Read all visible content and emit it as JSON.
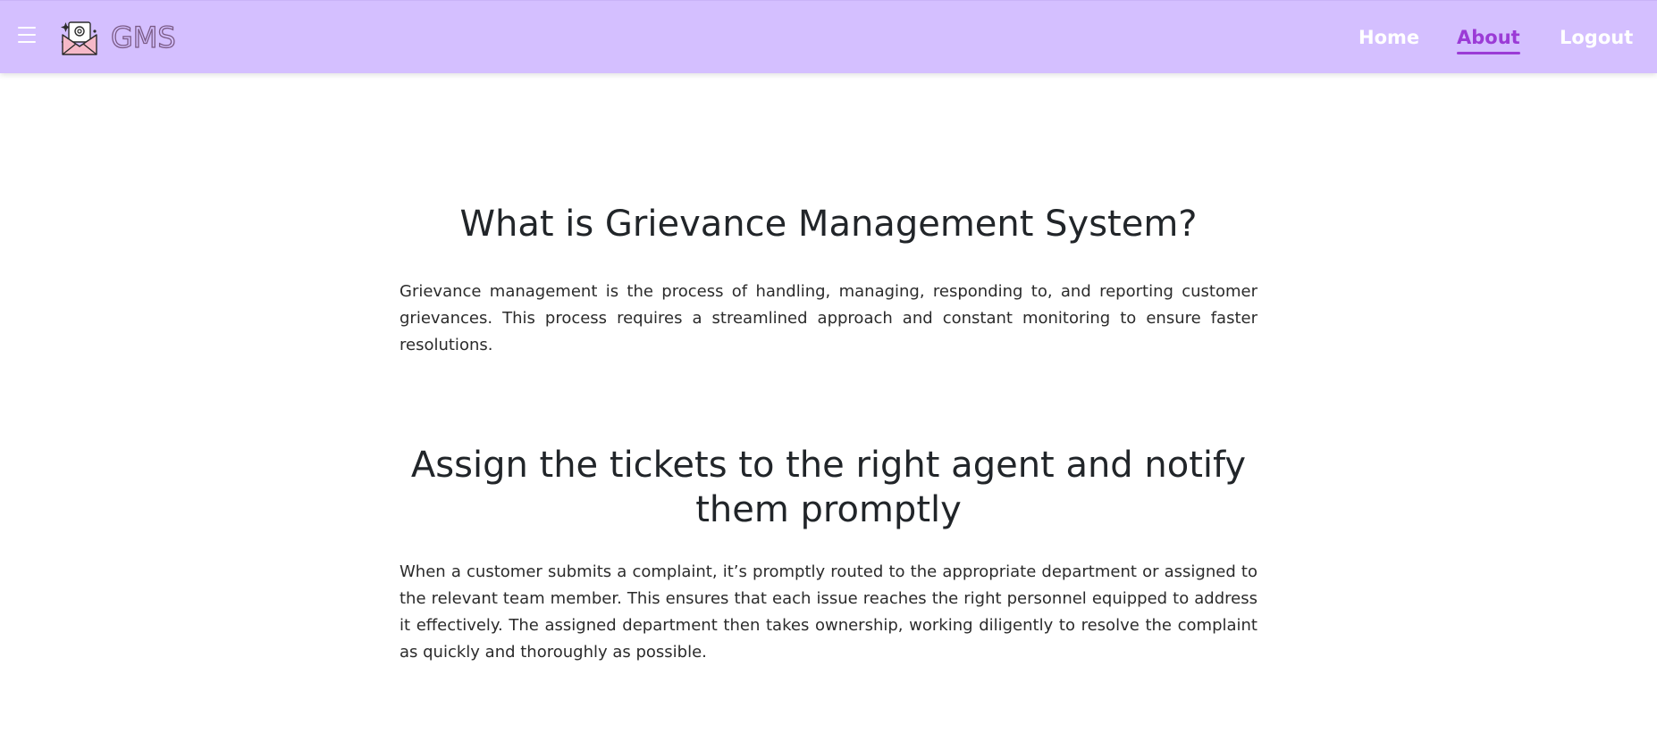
{
  "header": {
    "brand": "GMS",
    "icons": {
      "menu": "hamburger-menu-icon",
      "logo": "envelope-at-icon"
    },
    "nav": {
      "home": "Home",
      "about": "About",
      "logout": "Logout"
    },
    "active_nav": "About",
    "colors": {
      "navbar_bg": "#d4bfff",
      "active_link": "#9b3bd6",
      "link": "#ffffff"
    }
  },
  "main": {
    "sections": [
      {
        "title": "What is Grievance Management System?",
        "text": "Grievance management is the process of handling, managing, responding to, and reporting customer grievances. This process requires a streamlined approach and constant monitoring to ensure faster resolutions."
      },
      {
        "title": "Assign the tickets to the right agent and notify them promptly",
        "text": "When a customer submits a complaint, it’s promptly routed to the appropriate department or assigned to the relevant team member. This ensures that each issue reaches the right personnel equipped to address it effectively. The assigned department then takes ownership, working diligently to resolve the complaint as quickly and thoroughly as possible."
      }
    ]
  }
}
